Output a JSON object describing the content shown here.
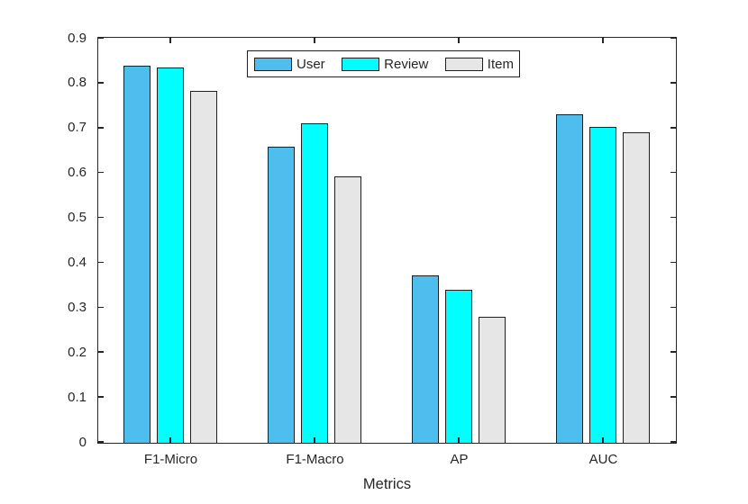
{
  "figure": {
    "background": "#FFFFFF",
    "axis_color": "#262626",
    "bar_edge_color": "#1F1F1F"
  },
  "chart_data": {
    "type": "bar",
    "title": "",
    "xlabel": "Metrics",
    "ylabel": "",
    "categories": [
      "F1-Micro",
      "F1-Macro",
      "AP",
      "AUC"
    ],
    "series": [
      {
        "name": "User",
        "color": "#4DBEEE",
        "values": [
          0.84,
          0.659,
          0.373,
          0.731
        ]
      },
      {
        "name": "Review",
        "color": "#00FFFF",
        "values": [
          0.836,
          0.711,
          0.341,
          0.703
        ]
      },
      {
        "name": "Item",
        "color": "#E6E6E6",
        "values": [
          0.784,
          0.593,
          0.28,
          0.692
        ]
      }
    ],
    "ylim": [
      0,
      0.9
    ],
    "yticks": [
      0,
      0.1,
      0.2,
      0.3,
      0.4,
      0.5,
      0.6,
      0.7,
      0.8,
      0.9
    ],
    "ytick_labels": [
      "0",
      "0.1",
      "0.2",
      "0.3",
      "0.4",
      "0.5",
      "0.6",
      "0.7",
      "0.8",
      "0.9"
    ],
    "legend": {
      "entries": [
        "User",
        "Review",
        "Item"
      ],
      "position": "north",
      "orientation": "horizontal"
    },
    "grid": false
  }
}
